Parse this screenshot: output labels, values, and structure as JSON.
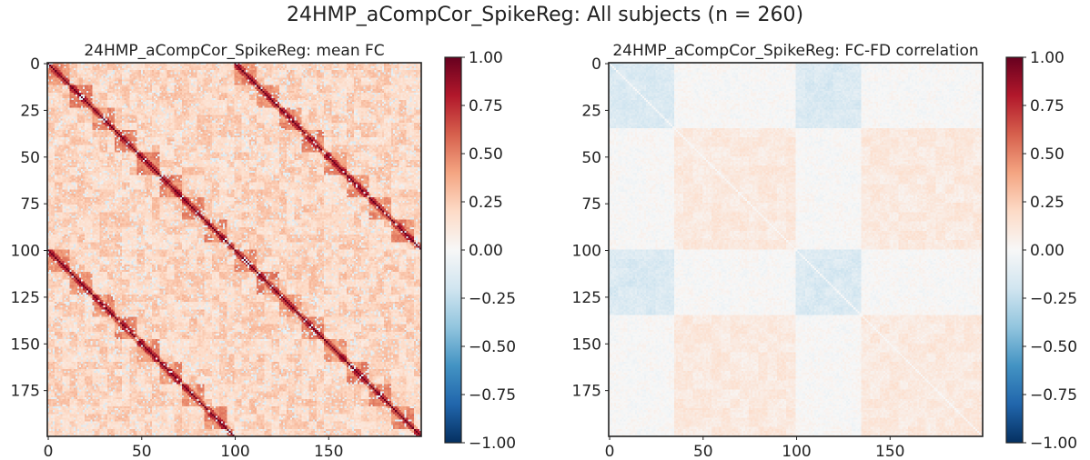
{
  "figure": {
    "suptitle": "24HMP_aCompCor_SpikeReg: All subjects (n = 260)"
  },
  "chart_data": [
    {
      "type": "heatmap",
      "title": "24HMP_aCompCor_SpikeReg: mean FC",
      "matrix_size": 200,
      "xticks": [
        0,
        50,
        100,
        150
      ],
      "yticks": [
        0,
        25,
        50,
        75,
        100,
        125,
        150,
        175
      ],
      "colorbar": {
        "min": -1.0,
        "max": 1.0,
        "ticks": [
          "1.00",
          "0.75",
          "0.50",
          "0.25",
          "0.00",
          "−0.25",
          "−0.50",
          "−0.75",
          "−1.00"
        ],
        "colormap": "RdBu_r",
        "colors": [
          "#053061",
          "#2166ac",
          "#4393c3",
          "#92c5de",
          "#d1e5f0",
          "#f7f7f7",
          "#fddbc7",
          "#f4a582",
          "#d6604d",
          "#b2182b",
          "#67001f"
        ]
      },
      "pattern": "diagonal = 1.00; mostly positive off-diagonal values (about 0.1 to 0.6), two repeating 100x100 blocks; sparse slightly negative entries"
    },
    {
      "type": "heatmap",
      "title": "24HMP_aCompCor_SpikeReg: FC-FD correlation",
      "matrix_size": 200,
      "xticks": [
        0,
        50,
        100,
        150
      ],
      "yticks": [
        0,
        25,
        50,
        75,
        100,
        125,
        150,
        175
      ],
      "colorbar": {
        "min": -1.0,
        "max": 1.0,
        "ticks": [
          "1.00",
          "0.75",
          "0.50",
          "0.25",
          "0.00",
          "−0.25",
          "−0.50",
          "−0.75",
          "−1.00"
        ],
        "colormap": "RdBu_r",
        "colors": [
          "#053061",
          "#2166ac",
          "#4393c3",
          "#92c5de",
          "#d1e5f0",
          "#f7f7f7",
          "#fddbc7",
          "#f4a582",
          "#d6604d",
          "#b2182b",
          "#67001f"
        ]
      },
      "pattern": "weak correlations mostly between -0.15 and 0.15; faint blue blocks near rows/cols 0-35 and 100-135, faint red elsewhere"
    }
  ]
}
